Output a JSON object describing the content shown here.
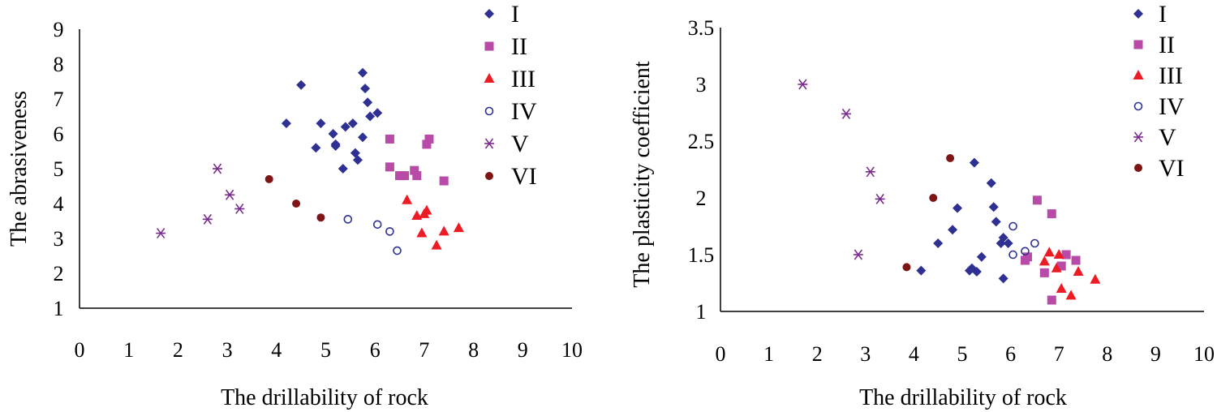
{
  "series_style": {
    "I": {
      "shape": "diamond",
      "color": "#2E3192"
    },
    "II": {
      "shape": "square",
      "color": "#B84AA8"
    },
    "III": {
      "shape": "triangle",
      "color": "#ED1C24"
    },
    "IV": {
      "shape": "circle-open",
      "color": "#2E3192"
    },
    "V": {
      "shape": "asterisk",
      "color": "#7B2D8E"
    },
    "VI": {
      "shape": "circle",
      "color": "#7F1416"
    }
  },
  "chart_data": [
    {
      "type": "scatter",
      "title": "",
      "xlabel": "The drillability of rock",
      "ylabel": "The abrasiveness",
      "xlim": [
        0,
        10
      ],
      "ylim": [
        1,
        9
      ],
      "xticks": [
        "0",
        "1",
        "2",
        "3",
        "4",
        "5",
        "6",
        "7",
        "8",
        "9",
        "10"
      ],
      "yticks": [
        "1",
        "2",
        "3",
        "4",
        "5",
        "6",
        "7",
        "8",
        "9"
      ],
      "legend_position": "top-right",
      "grid": false,
      "series": [
        {
          "name": "I",
          "key": "I",
          "points": [
            [
              4.2,
              6.3
            ],
            [
              4.5,
              7.4
            ],
            [
              4.8,
              5.6
            ],
            [
              4.9,
              6.3
            ],
            [
              5.15,
              6.0
            ],
            [
              5.2,
              5.7
            ],
            [
              5.2,
              5.65
            ],
            [
              5.35,
              5.0
            ],
            [
              5.4,
              6.2
            ],
            [
              5.55,
              6.3
            ],
            [
              5.6,
              5.45
            ],
            [
              5.65,
              5.25
            ],
            [
              5.75,
              5.9
            ],
            [
              5.75,
              7.75
            ],
            [
              5.8,
              7.3
            ],
            [
              5.85,
              6.9
            ],
            [
              5.9,
              6.5
            ],
            [
              6.05,
              6.6
            ]
          ]
        },
        {
          "name": "II",
          "key": "II",
          "points": [
            [
              6.3,
              5.85
            ],
            [
              6.3,
              5.05
            ],
            [
              6.5,
              4.8
            ],
            [
              6.6,
              4.8
            ],
            [
              6.8,
              4.95
            ],
            [
              6.85,
              4.8
            ],
            [
              7.05,
              5.7
            ],
            [
              7.1,
              5.85
            ],
            [
              7.4,
              4.65
            ]
          ]
        },
        {
          "name": "III",
          "key": "III",
          "points": [
            [
              6.65,
              4.1
            ],
            [
              6.85,
              3.65
            ],
            [
              6.95,
              3.15
            ],
            [
              7.0,
              3.7
            ],
            [
              7.05,
              3.8
            ],
            [
              7.25,
              2.8
            ],
            [
              7.4,
              3.2
            ],
            [
              7.7,
              3.3
            ]
          ]
        },
        {
          "name": "IV",
          "key": "IV",
          "points": [
            [
              5.45,
              3.55
            ],
            [
              6.05,
              3.4
            ],
            [
              6.3,
              3.2
            ],
            [
              6.45,
              2.65
            ]
          ]
        },
        {
          "name": "V",
          "key": "V",
          "points": [
            [
              1.65,
              3.15
            ],
            [
              2.6,
              3.55
            ],
            [
              2.8,
              5.0
            ],
            [
              3.05,
              4.25
            ],
            [
              3.25,
              3.85
            ]
          ]
        },
        {
          "name": "VI",
          "key": "VI",
          "points": [
            [
              3.85,
              4.7
            ],
            [
              4.4,
              4.0
            ],
            [
              4.9,
              3.6
            ]
          ]
        }
      ]
    },
    {
      "type": "scatter",
      "title": "",
      "xlabel": "The drillability of rock",
      "ylabel": "The plasticity coefficient",
      "xlim": [
        0,
        10
      ],
      "ylim": [
        1,
        3.5
      ],
      "xticks": [
        "0",
        "1",
        "2",
        "3",
        "4",
        "5",
        "6",
        "7",
        "8",
        "9",
        "10"
      ],
      "yticks": [
        "1",
        "1.5",
        "2",
        "2.5",
        "3",
        "3.5"
      ],
      "legend_position": "top-right",
      "grid": false,
      "series": [
        {
          "name": "I",
          "key": "I",
          "points": [
            [
              4.15,
              1.36
            ],
            [
              4.5,
              1.6
            ],
            [
              4.8,
              1.72
            ],
            [
              4.9,
              1.91
            ],
            [
              5.15,
              1.36
            ],
            [
              5.2,
              1.38
            ],
            [
              5.25,
              2.31
            ],
            [
              5.3,
              1.35
            ],
            [
              5.4,
              1.48
            ],
            [
              5.6,
              2.13
            ],
            [
              5.65,
              1.92
            ],
            [
              5.7,
              1.79
            ],
            [
              5.8,
              1.6
            ],
            [
              5.85,
              1.65
            ],
            [
              5.85,
              1.29
            ],
            [
              5.95,
              1.6
            ]
          ]
        },
        {
          "name": "II",
          "key": "II",
          "points": [
            [
              6.3,
              1.45
            ],
            [
              6.35,
              1.48
            ],
            [
              6.55,
              1.98
            ],
            [
              6.7,
              1.34
            ],
            [
              6.85,
              1.86
            ],
            [
              6.85,
              1.1
            ],
            [
              7.05,
              1.4
            ],
            [
              7.15,
              1.5
            ],
            [
              7.35,
              1.45
            ]
          ]
        },
        {
          "name": "III",
          "key": "III",
          "points": [
            [
              6.7,
              1.44
            ],
            [
              6.8,
              1.52
            ],
            [
              6.95,
              1.38
            ],
            [
              7.0,
              1.5
            ],
            [
              7.05,
              1.2
            ],
            [
              7.25,
              1.14
            ],
            [
              7.4,
              1.35
            ],
            [
              7.75,
              1.28
            ]
          ]
        },
        {
          "name": "IV",
          "key": "IV",
          "points": [
            [
              6.05,
              1.5
            ],
            [
              6.05,
              1.75
            ],
            [
              6.3,
              1.53
            ],
            [
              6.5,
              1.6
            ]
          ]
        },
        {
          "name": "V",
          "key": "V",
          "points": [
            [
              1.7,
              3.0
            ],
            [
              2.6,
              2.74
            ],
            [
              3.1,
              2.23
            ],
            [
              3.3,
              1.99
            ],
            [
              2.85,
              1.5
            ]
          ]
        },
        {
          "name": "VI",
          "key": "VI",
          "points": [
            [
              3.85,
              1.39
            ],
            [
              4.4,
              2.0
            ],
            [
              4.75,
              2.35
            ]
          ]
        }
      ]
    }
  ]
}
